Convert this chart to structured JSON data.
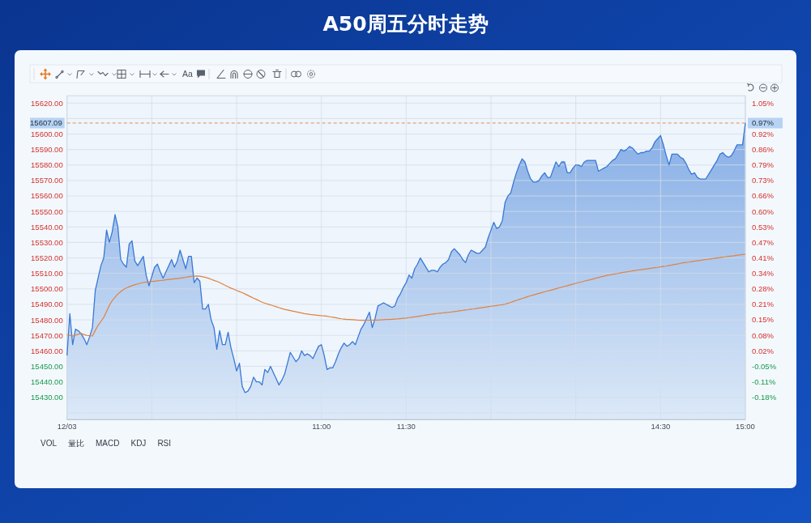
{
  "chart_data": {
    "type": "area",
    "title": "A50周五分时走势",
    "categories": [
      "12/03",
      null,
      null,
      null,
      null,
      null,
      null,
      null,
      null,
      null,
      null,
      null,
      null,
      null,
      null,
      null,
      null,
      null,
      null,
      null,
      null,
      null,
      null,
      null,
      null,
      null,
      null,
      null,
      null,
      null,
      null,
      null,
      null,
      null,
      null,
      null,
      null,
      null,
      null,
      null,
      null,
      null,
      null,
      null,
      null,
      null,
      null,
      null,
      null,
      null,
      null,
      null,
      null,
      null,
      null,
      null,
      null,
      null,
      null,
      null,
      null,
      null,
      null,
      null,
      null,
      null,
      null,
      null,
      null,
      null,
      null,
      null,
      null,
      null,
      null,
      null,
      null,
      null,
      null,
      null,
      null,
      null,
      null,
      null,
      null,
      null,
      null,
      null,
      null,
      null,
      "11:00",
      null,
      null,
      null,
      null,
      null,
      null,
      null,
      null,
      null,
      null,
      null,
      null,
      null,
      null,
      null,
      null,
      null,
      null,
      null,
      null,
      null,
      null,
      null,
      null,
      null,
      null,
      null,
      null,
      null,
      "11:30",
      null,
      null,
      null,
      null,
      null,
      null,
      null,
      null,
      null,
      null,
      null,
      null,
      null,
      null,
      null,
      null,
      null,
      null,
      null,
      null,
      null,
      null,
      null,
      null,
      null,
      null,
      null,
      null,
      null,
      null,
      null,
      null,
      null,
      null,
      null,
      null,
      null,
      null,
      null,
      null,
      null,
      null,
      null,
      null,
      null,
      null,
      null,
      null,
      null,
      null,
      null,
      null,
      null,
      null,
      null,
      null,
      null,
      null,
      null,
      null,
      null,
      null,
      null,
      null,
      null,
      null,
      null,
      null,
      null,
      null,
      null,
      null,
      null,
      null,
      null,
      null,
      null,
      null,
      null,
      null,
      null,
      null,
      null,
      null,
      null,
      null,
      null,
      null,
      null,
      "14:30",
      null,
      null,
      null,
      null,
      null,
      null,
      null,
      null,
      null,
      null,
      null,
      null,
      null,
      null,
      null,
      null,
      null,
      null,
      null,
      null,
      null,
      null,
      null,
      null,
      null,
      null,
      null,
      null,
      null,
      "15:00"
    ],
    "series": [
      {
        "type": "area",
        "color": "#3a78d6",
        "values": [
          15457,
          15484,
          15464,
          15474,
          15473,
          15471,
          15468,
          15464,
          15469,
          15475,
          15499,
          15507,
          15515,
          15520,
          15538,
          15530,
          15537,
          15548,
          15540,
          15519,
          15516,
          15514,
          15529,
          15531,
          15518,
          15515,
          15518,
          15521,
          15509,
          15502,
          15508,
          15514,
          15516,
          15511,
          15507,
          15511,
          15515,
          15519,
          15514,
          15518,
          15525,
          15519,
          15513,
          15521,
          15521,
          15504,
          15507,
          15505,
          15487,
          15487,
          15490,
          15480,
          15475,
          15461,
          15473,
          15464,
          15464,
          15472,
          15462,
          15455,
          15447,
          15452,
          15437,
          15433,
          15434,
          15437,
          15443,
          15440,
          15440,
          15438,
          15448,
          15446,
          15450,
          15446,
          15442,
          15438,
          15441,
          15445,
          15452,
          15459,
          15456,
          15453,
          15455,
          15460,
          15457,
          15458,
          15457,
          15455,
          15459,
          15463,
          15464,
          15457,
          15448,
          15449,
          15449,
          15453,
          15458,
          15462,
          15465,
          15463,
          15464,
          15466,
          15464,
          15469,
          15474,
          15477,
          15481,
          15485,
          15475,
          15481,
          15489,
          15490,
          15491,
          15490,
          15489,
          15488,
          15489,
          15494,
          15497,
          15501,
          15504,
          15509,
          15507,
          15513,
          15516,
          15520,
          15517,
          15514,
          15511,
          15512,
          15512,
          15511,
          15514,
          15516,
          15517,
          15519,
          15524,
          15526,
          15524,
          15522,
          15519,
          15517,
          15522,
          15525,
          15524,
          15523,
          15523,
          15525,
          15527,
          15533,
          15538,
          15543,
          15539,
          15540,
          15544,
          15556,
          15560,
          15562,
          15569,
          15575,
          15580,
          15584,
          15582,
          15576,
          15571,
          15569,
          15569,
          15570,
          15573,
          15575,
          15572,
          15572,
          15577,
          15582,
          15579,
          15582,
          15582,
          15575,
          15575,
          15578,
          15580,
          15580,
          15579,
          15582,
          15583,
          15583,
          15583,
          15583,
          15576,
          15577,
          15578,
          15579,
          15581,
          15583,
          15584,
          15587,
          15590,
          15589,
          15590,
          15592,
          15591,
          15589,
          15587,
          15588,
          15588,
          15589,
          15589,
          15591,
          15595,
          15597,
          15599,
          15593,
          15586,
          15580,
          15587,
          15587,
          15587,
          15585,
          15584,
          15581,
          15577,
          15574,
          15575,
          15572,
          15571,
          15571,
          15571,
          15574,
          15577,
          15580,
          15583,
          15587,
          15588,
          15586,
          15585,
          15586,
          15589,
          15593,
          15593,
          15593,
          15607
        ]
      },
      {
        "type": "line",
        "color": "#e0823f",
        "values": [
          15470.4,
          15470.0,
          15469.5,
          15470.1,
          15470.7,
          15471.3,
          15470.6,
          15470.0,
          15469.8,
          15469.6,
          15473.2,
          15476.5,
          15479.0,
          15481.6,
          15485.4,
          15489.4,
          15492.5,
          15494.6,
          15496.7,
          15498.2,
          15499.7,
          15500.6,
          15501.4,
          15502.1,
          15502.7,
          15503.2,
          15503.7,
          15504.1,
          15504.4,
          15504.6,
          15504.8,
          15505.0,
          15505.2,
          15505.4,
          15505.6,
          15505.9,
          15506.1,
          15506.3,
          15506.5,
          15506.7,
          15506.9,
          15507.2,
          15507.5,
          15507.8,
          15508.1,
          15508.2,
          15508.3,
          15508.2,
          15507.8,
          15507.4,
          15506.9,
          15506.2,
          15505.5,
          15504.9,
          15504.1,
          15503.2,
          15502.3,
          15501.4,
          15500.5,
          15499.8,
          15499.0,
          15498.3,
          15497.6,
          15496.7,
          15495.8,
          15494.9,
          15494.0,
          15493.2,
          15492.3,
          15491.4,
          15490.8,
          15490.2,
          15489.7,
          15489.1,
          15488.5,
          15487.9,
          15487.3,
          15486.8,
          15486.4,
          15486.0,
          15485.6,
          15485.2,
          15484.8,
          15484.4,
          15484.0,
          15483.8,
          15483.5,
          15483.3,
          15483.1,
          15482.9,
          15482.7,
          15482.6,
          15482.3,
          15482.0,
          15481.7,
          15481.4,
          15481.0,
          15480.7,
          15480.5,
          15480.3,
          15480.2,
          15480.1,
          15480.0,
          15479.8,
          15479.7,
          15479.7,
          15479.8,
          15479.8,
          15479.8,
          15479.9,
          15479.9,
          15480.0,
          15480.1,
          15480.2,
          15480.3,
          15480.4,
          15480.5,
          15480.6,
          15480.8,
          15481.0,
          15481.2,
          15481.5,
          15481.7,
          15481.9,
          15482.2,
          15482.5,
          15482.8,
          15483.1,
          15483.4,
          15483.7,
          15483.9,
          15484.1,
          15484.3,
          15484.5,
          15484.7,
          15484.9,
          15485.1,
          15485.4,
          15485.6,
          15485.9,
          15486.1,
          15486.4,
          15486.6,
          15486.9,
          15487.1,
          15487.4,
          15487.7,
          15488.0,
          15488.2,
          15488.5,
          15488.8,
          15489.0,
          15489.3,
          15489.6,
          15489.8,
          15490.1,
          15490.7,
          15491.3,
          15492.0,
          15492.6,
          15493.2,
          15493.8,
          15494.4,
          15495.0,
          15495.6,
          15496.1,
          15496.6,
          15497.1,
          15497.6,
          15498.1,
          15498.6,
          15499.1,
          15499.6,
          15500.1,
          15500.6,
          15501.1,
          15501.6,
          15502.1,
          15502.6,
          15503.1,
          15503.6,
          15504.1,
          15504.5,
          15505.0,
          15505.5,
          15505.9,
          15506.4,
          15506.9,
          15507.3,
          15507.8,
          15508.2,
          15508.7,
          15509.0,
          15509.4,
          15509.7,
          15510.0,
          15510.4,
          15510.7,
          15511.0,
          15511.3,
          15511.6,
          15511.9,
          15512.2,
          15512.4,
          15512.7,
          15512.9,
          15513.2,
          15513.4,
          15513.7,
          15513.9,
          15514.2,
          15514.5,
          15514.7,
          15515.1,
          15515.4,
          15515.8,
          15516.1,
          15516.5,
          15516.8,
          15517.1,
          15517.3,
          15517.6,
          15517.9,
          15518.2,
          15518.4,
          15518.7,
          15519.0,
          15519.2,
          15519.5,
          15519.7,
          15520.0,
          15520.2,
          15520.5,
          15520.7,
          15521.0,
          15521.2,
          15521.4,
          15521.7,
          15521.9,
          15522.2,
          15522.4
        ]
      }
    ],
    "ylim": [
      15415.6,
      15624.7
    ],
    "yticks": [
      {
        "value": 15420,
        "label": null
      },
      {
        "value": 15430,
        "label": "15430.00"
      },
      {
        "value": 15440,
        "label": "15440.00"
      },
      {
        "value": 15450,
        "label": "15450.00"
      },
      {
        "value": 15460,
        "label": "15460.00"
      },
      {
        "value": 15470,
        "label": "15470.00"
      },
      {
        "value": 15480,
        "label": "15480.00"
      },
      {
        "value": 15490,
        "label": "15490.00"
      },
      {
        "value": 15500,
        "label": "15500.00"
      },
      {
        "value": 15510,
        "label": "15510.00"
      },
      {
        "value": 15520,
        "label": "15520.00"
      },
      {
        "value": 15530,
        "label": "15530.00"
      },
      {
        "value": 15540,
        "label": "15540.00"
      },
      {
        "value": 15550,
        "label": "15550.00"
      },
      {
        "value": 15560,
        "label": "15560.00"
      },
      {
        "value": 15570,
        "label": "15570.00"
      },
      {
        "value": 15580,
        "label": "15580.00"
      },
      {
        "value": 15590,
        "label": "15590.00"
      },
      {
        "value": 15600,
        "label": "15600.00"
      },
      {
        "value": 15610,
        "label": null
      },
      {
        "value": 15620,
        "label": "15620.00"
      }
    ],
    "y2lim": [
      -0.2681,
      1.0806
    ],
    "y2ticks": [
      {
        "value": -0.1752,
        "label": "-0.18%"
      },
      {
        "value": -0.1107,
        "label": "-0.11%"
      },
      {
        "value": -0.0462,
        "label": "-0.05%"
      },
      {
        "value": 0.0183,
        "label": "0.02%"
      },
      {
        "value": 0.0828,
        "label": "0.08%"
      },
      {
        "value": 0.1473,
        "label": "0.15%"
      },
      {
        "value": 0.2118,
        "label": "0.21%"
      },
      {
        "value": 0.2763,
        "label": "0.28%"
      },
      {
        "value": 0.3408,
        "label": "0.34%"
      },
      {
        "value": 0.4053,
        "label": "0.41%"
      },
      {
        "value": 0.4698,
        "label": "0.47%"
      },
      {
        "value": 0.5343,
        "label": "0.53%"
      },
      {
        "value": 0.5988,
        "label": "0.60%"
      },
      {
        "value": 0.6633,
        "label": "0.66%"
      },
      {
        "value": 0.7278,
        "label": "0.73%"
      },
      {
        "value": 0.7923,
        "label": "0.79%"
      },
      {
        "value": 0.8568,
        "label": "0.86%"
      },
      {
        "value": 0.9213,
        "label": "0.92%"
      },
      {
        "value": 1.0503,
        "label": "1.05%"
      }
    ],
    "ref_lines": [
      {
        "axis": "y",
        "value": 15607.09,
        "label": "15607.09",
        "color": "#e0823f",
        "line_style": "dashed"
      }
    ],
    "grid": true,
    "annotations": [
      "Aa",
      "VOL",
      "量比",
      "MACD",
      "KDJ",
      "RSI",
      "0.97%"
    ]
  }
}
